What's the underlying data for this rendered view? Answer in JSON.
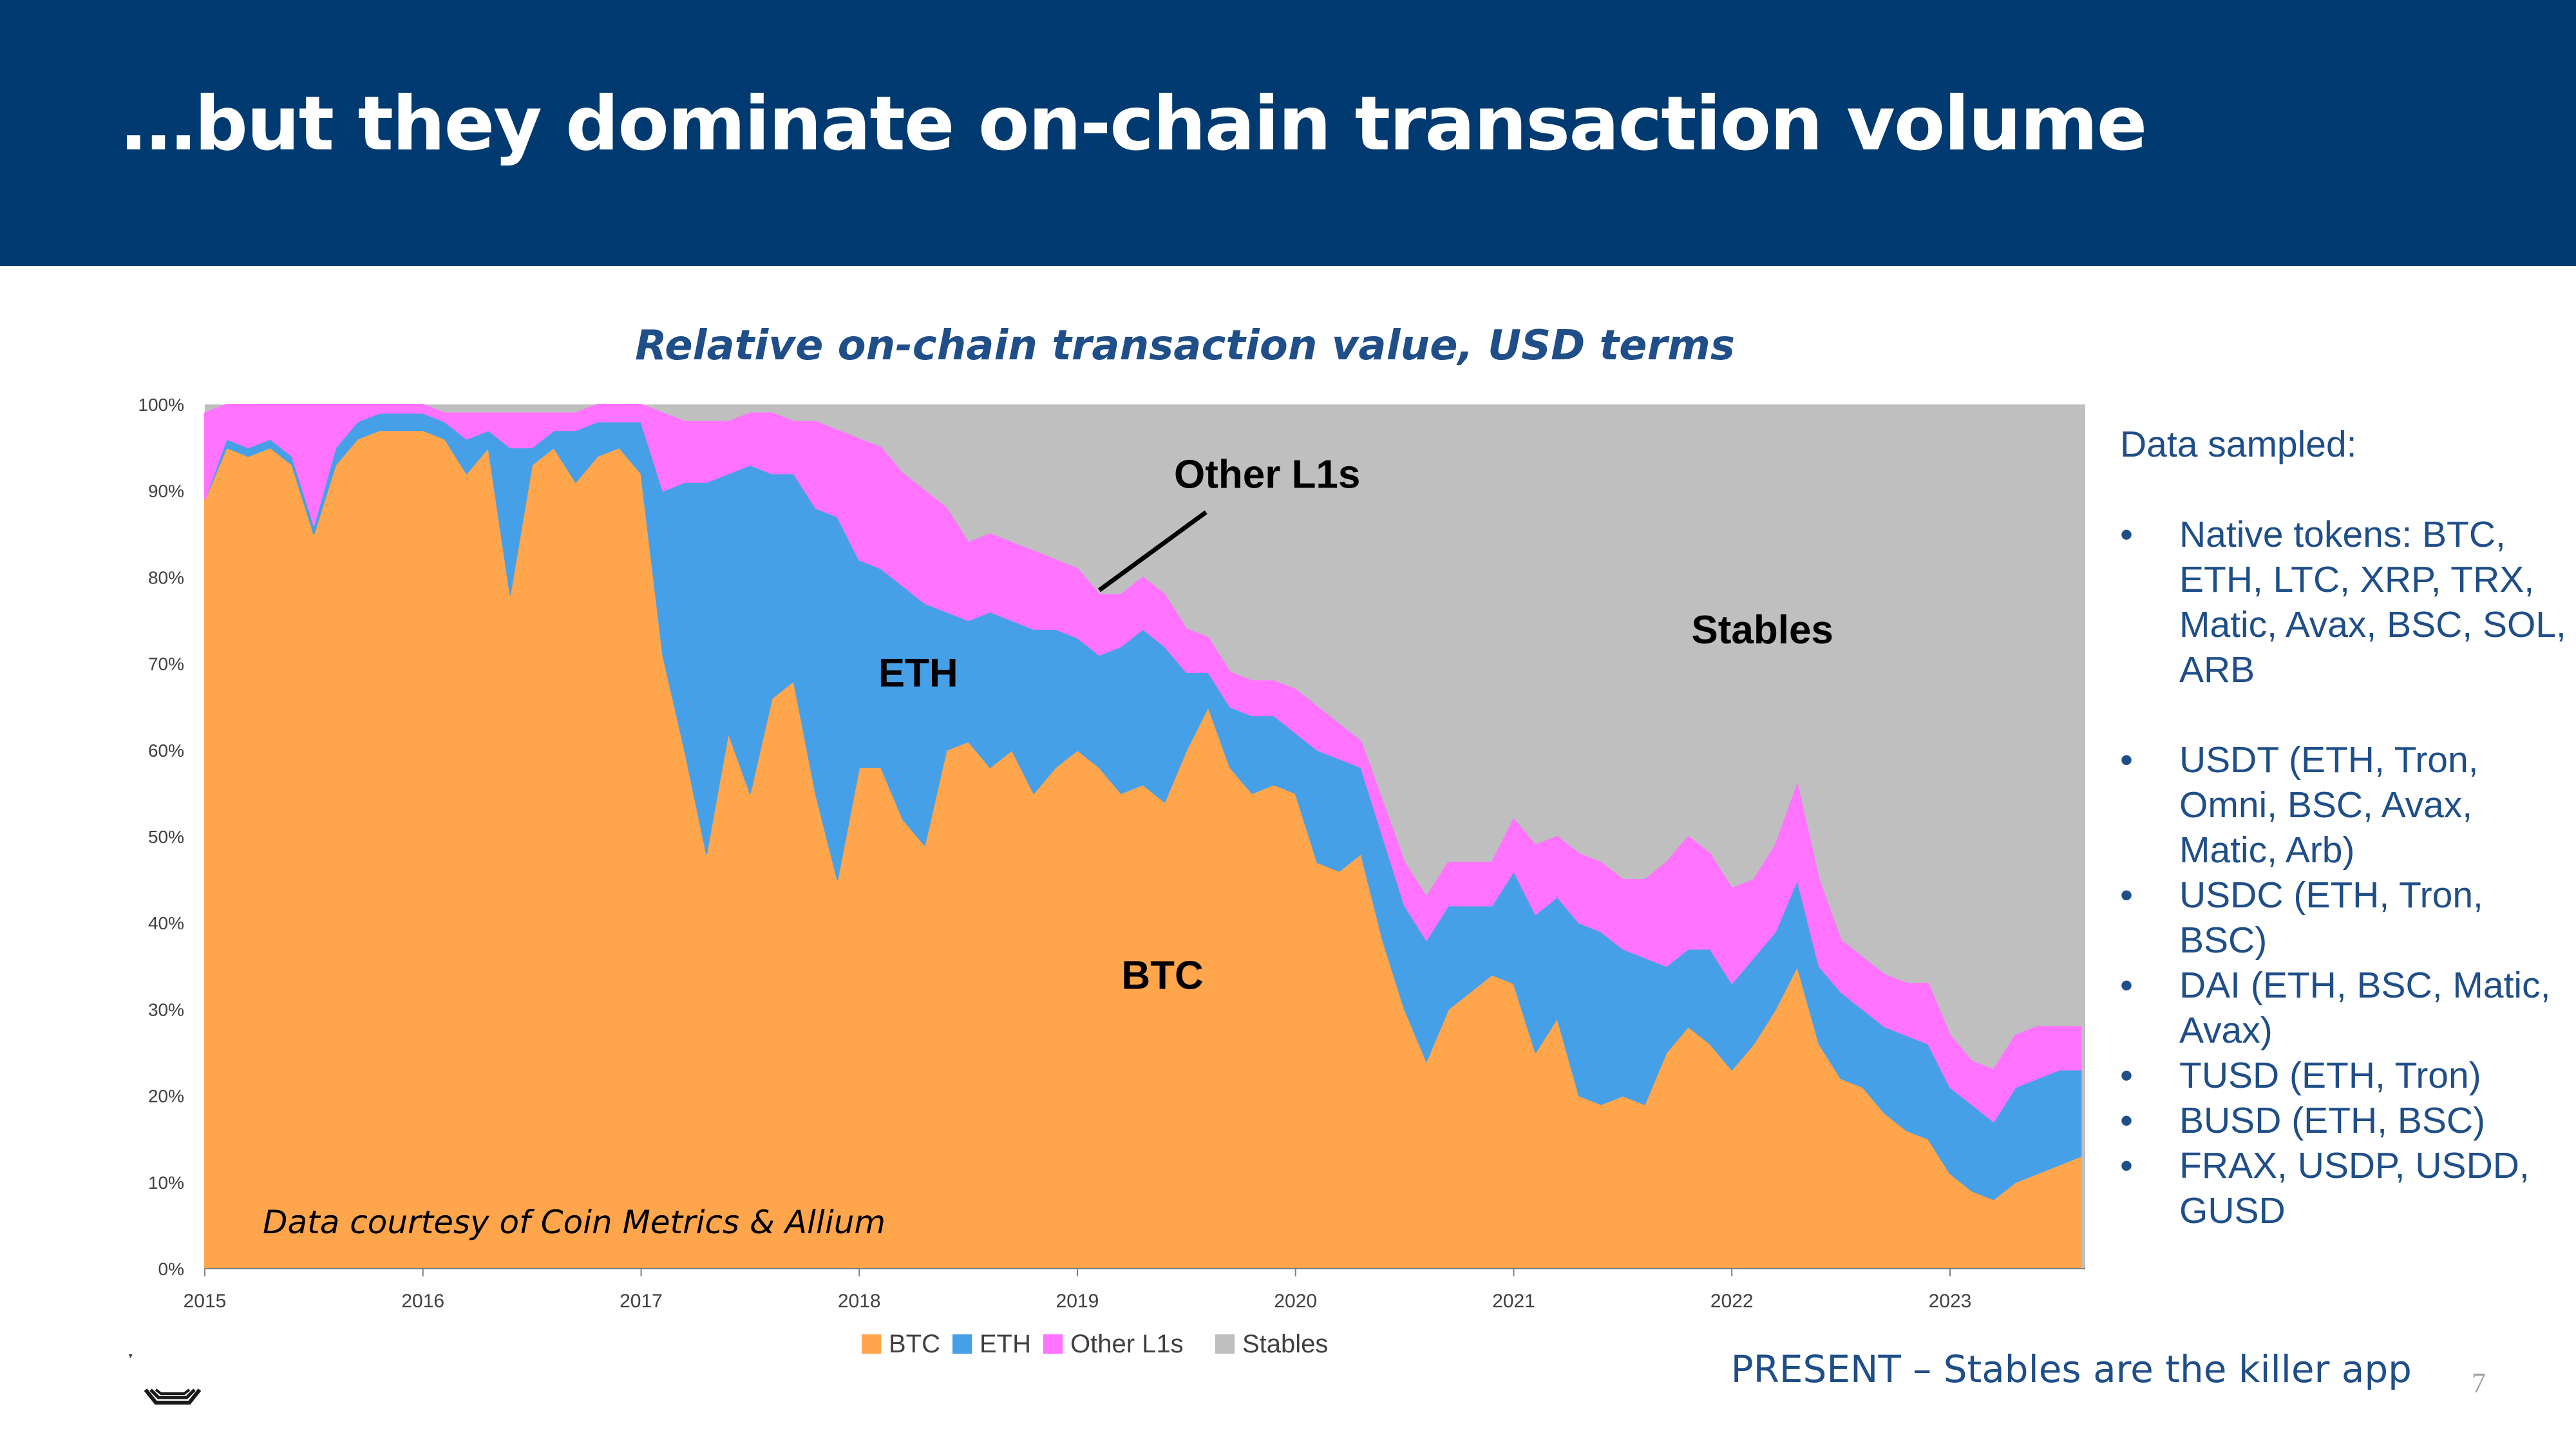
{
  "slide": {
    "title": "…but they dominate on-chain transaction volume",
    "footer": "PRESENT – Stables are the killer app",
    "page_number": "7"
  },
  "colors": {
    "header_bg": "#003A70",
    "btc": "#FFA64D",
    "eth": "#46A0E8",
    "other_l1s": "#FF73FF",
    "stables": "#BFBFBF",
    "text_blue": "#1F4E88"
  },
  "sidebar": {
    "heading": "Data sampled:",
    "native_tokens": [
      "Native tokens: BTC, ETH, LTC, XRP, TRX, Matic, Avax, BSC, SOL, ARB"
    ],
    "stablecoins": [
      "USDT (ETH, Tron, Omni, BSC, Avax, Matic, Arb)",
      "USDC (ETH, Tron, BSC)",
      "DAI (ETH, BSC, Matic, Avax)",
      "TUSD (ETH, Tron)",
      "BUSD (ETH, BSC)",
      "FRAX, USDP, USDD, GUSD"
    ]
  },
  "chart_data": {
    "type": "area",
    "stacked": true,
    "normalized": true,
    "title": "Relative on-chain transaction value, USD terms",
    "source_note": "Data courtesy of Coin Metrics & Allium",
    "xlim": [
      2015.0,
      2023.62
    ],
    "ylim": [
      0,
      100
    ],
    "x_ticks": [
      "2015",
      "2016",
      "2017",
      "2018",
      "2019",
      "2020",
      "2021",
      "2022",
      "2023"
    ],
    "y_ticks": [
      "0%",
      "10%",
      "20%",
      "30%",
      "40%",
      "50%",
      "60%",
      "70%",
      "80%",
      "90%",
      "100%"
    ],
    "legend": {
      "position": "bottom",
      "entries": [
        "BTC",
        "ETH",
        "Other L1s",
        "Stables"
      ]
    },
    "annotations": [
      {
        "text": "ETH",
        "x": 2018.27,
        "y": 69
      },
      {
        "text": "BTC",
        "x": 2019.39,
        "y": 34
      },
      {
        "text": "Stables",
        "x": 2022.14,
        "y": 74
      },
      {
        "text": "Other L1s",
        "x": 2019.87,
        "y": 92,
        "pointer_to": [
          2019.1,
          78.5
        ]
      }
    ],
    "x": [
      2015.0,
      2015.1,
      2015.2,
      2015.3,
      2015.4,
      2015.5,
      2015.6,
      2015.7,
      2015.8,
      2015.9,
      2016.0,
      2016.1,
      2016.2,
      2016.3,
      2016.4,
      2016.5,
      2016.6,
      2016.7,
      2016.8,
      2016.9,
      2017.0,
      2017.1,
      2017.2,
      2017.3,
      2017.4,
      2017.5,
      2017.6,
      2017.7,
      2017.8,
      2017.9,
      2018.0,
      2018.1,
      2018.2,
      2018.3,
      2018.4,
      2018.5,
      2018.6,
      2018.7,
      2018.8,
      2018.9,
      2019.0,
      2019.1,
      2019.2,
      2019.3,
      2019.4,
      2019.5,
      2019.6,
      2019.7,
      2019.8,
      2019.9,
      2020.0,
      2020.1,
      2020.2,
      2020.3,
      2020.4,
      2020.5,
      2020.6,
      2020.7,
      2020.8,
      2020.9,
      2021.0,
      2021.1,
      2021.2,
      2021.3,
      2021.4,
      2021.5,
      2021.6,
      2021.7,
      2021.8,
      2021.9,
      2022.0,
      2022.1,
      2022.2,
      2022.3,
      2022.4,
      2022.5,
      2022.6,
      2022.7,
      2022.8,
      2022.9,
      2023.0,
      2023.1,
      2023.2,
      2023.3,
      2023.4,
      2023.5,
      2023.6
    ],
    "series": [
      {
        "name": "BTC",
        "values": [
          89,
          95,
          94,
          95,
          93,
          85,
          93,
          96,
          97,
          97,
          97,
          96,
          92,
          95,
          78,
          93,
          95,
          91,
          94,
          95,
          92,
          71,
          60,
          48,
          62,
          55,
          66,
          68,
          55,
          45,
          58,
          58,
          52,
          49,
          60,
          61,
          58,
          60,
          55,
          58,
          60,
          58,
          55,
          56,
          54,
          60,
          65,
          58,
          55,
          56,
          55,
          47,
          46,
          48,
          38,
          30,
          24,
          30,
          32,
          34,
          33,
          25,
          29,
          20,
          19,
          20,
          19,
          25,
          28,
          26,
          23,
          26,
          30,
          35,
          26,
          22,
          21,
          18,
          16,
          15,
          11,
          9,
          8,
          10,
          11,
          12,
          13
        ]
      },
      {
        "name": "ETH",
        "values": [
          0,
          1,
          1,
          1,
          1,
          1,
          2,
          2,
          2,
          2,
          2,
          2,
          4,
          2,
          17,
          2,
          2,
          6,
          4,
          3,
          6,
          19,
          31,
          43,
          30,
          38,
          26,
          24,
          33,
          42,
          24,
          23,
          27,
          28,
          16,
          14,
          18,
          15,
          19,
          16,
          13,
          13,
          17,
          18,
          18,
          9,
          4,
          7,
          9,
          8,
          7,
          13,
          13,
          10,
          12,
          12,
          14,
          12,
          10,
          8,
          13,
          16,
          14,
          20,
          20,
          17,
          17,
          10,
          9,
          11,
          10,
          10,
          9,
          10,
          9,
          10,
          9,
          10,
          11,
          11,
          10,
          10,
          9,
          11,
          11,
          11,
          10
        ]
      },
      {
        "name": "Other L1s",
        "values": [
          10,
          4,
          5,
          4,
          6,
          14,
          5,
          2,
          1,
          1,
          1,
          1,
          3,
          2,
          4,
          4,
          2,
          2,
          2,
          2,
          2,
          9,
          7,
          7,
          6,
          6,
          7,
          6,
          10,
          10,
          14,
          14,
          13,
          13,
          12,
          9,
          9,
          9,
          9,
          8,
          8,
          7,
          6,
          6,
          6,
          5,
          4,
          4,
          4,
          4,
          5,
          5,
          4,
          3,
          4,
          5,
          5,
          5,
          5,
          5,
          6,
          8,
          7,
          8,
          8,
          8,
          9,
          12,
          13,
          11,
          11,
          9,
          10,
          11,
          10,
          6,
          6,
          6,
          6,
          7,
          6,
          5,
          6,
          6,
          6,
          5,
          5
        ]
      }
    ]
  }
}
